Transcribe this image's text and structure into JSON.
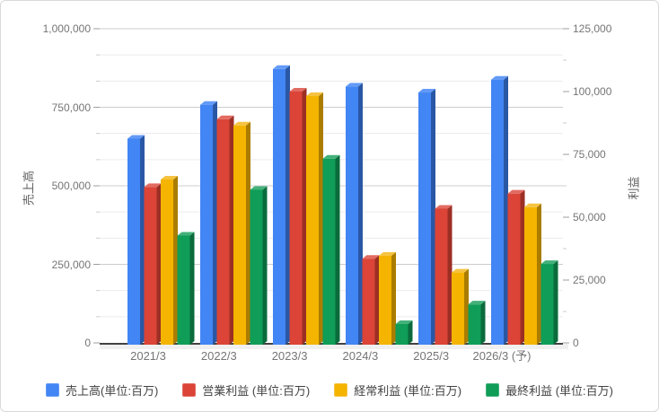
{
  "chart_data": {
    "type": "bar",
    "title": "",
    "categories": [
      "2021/3",
      "2022/3",
      "2023/3",
      "2024/3",
      "2025/3",
      "2026/3 (予)"
    ],
    "series": [
      {
        "key": "sales",
        "name": "売上高(単位:百万)",
        "axis": "left",
        "color": "#4285f4",
        "color_top": "#639af6",
        "color_side": "#2a57a5",
        "values": [
          650000,
          758000,
          872000,
          816000,
          797000,
          838000
        ]
      },
      {
        "key": "operating-profit",
        "name": "営業利益 (単位:百万)",
        "axis": "right",
        "color": "#db4437",
        "color_top": "#e26b61",
        "color_side": "#9c2f24",
        "values": [
          62000,
          89000,
          100000,
          33500,
          53400,
          59400
        ]
      },
      {
        "key": "ordinary-profit",
        "name": "経常利益 (単位:百万)",
        "axis": "right",
        "color": "#f4b400",
        "color_top": "#f6c341",
        "color_side": "#aa7d00",
        "values": [
          65000,
          86500,
          98200,
          34700,
          28000,
          54000
        ]
      },
      {
        "key": "net-profit",
        "name": "最終利益 (単位:百万)",
        "axis": "right",
        "color": "#0f9d58",
        "color_top": "#43b17a",
        "color_side": "#0a6b3c",
        "values": [
          42700,
          60900,
          73300,
          7500,
          15300,
          31400
        ]
      }
    ],
    "left_axis": {
      "title": "売上高",
      "min": 0,
      "max": 1000000,
      "ticks": [
        "0",
        "250,000",
        "500,000",
        "750,000",
        "1,000,000"
      ]
    },
    "right_axis": {
      "title": "利益",
      "min": 0,
      "max": 125000,
      "ticks": [
        "0",
        "25,000",
        "50,000",
        "75,000",
        "100,000",
        "125,000"
      ]
    },
    "grid": {
      "major_color": "#cccccc",
      "minor_color": "#ebebeb",
      "minors_per_major": 3,
      "baseline_color": "#424242",
      "floor_color": "#f0f0f0"
    },
    "legend_position": "bottom",
    "is_3d": true
  }
}
